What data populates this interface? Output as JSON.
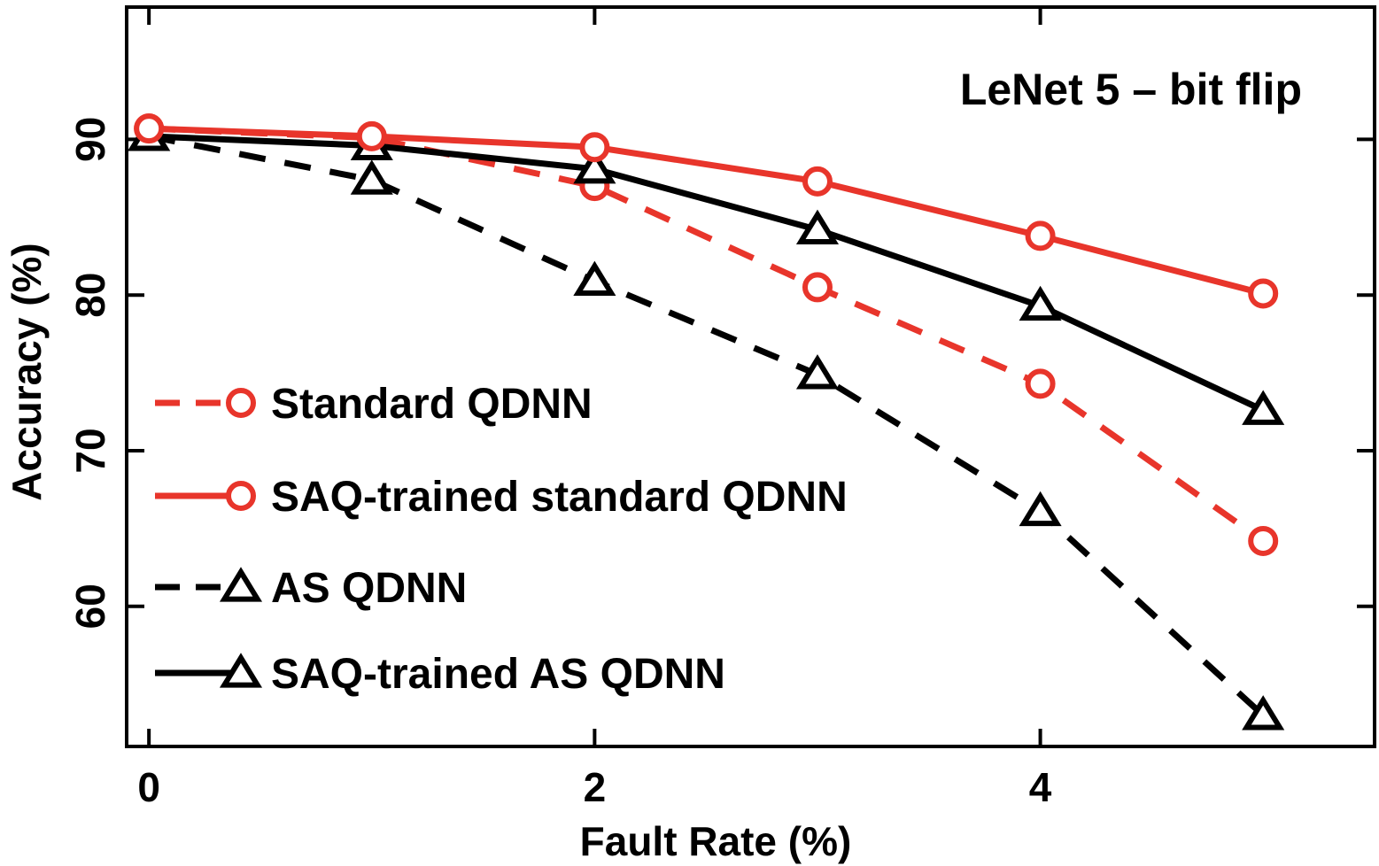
{
  "chart_data": {
    "type": "line",
    "title": "LeNet 5 – bit flip",
    "xlabel": "Fault Rate (%)",
    "ylabel": "Accuracy (%)",
    "xlim": [
      -0.1,
      5.5
    ],
    "ylim": [
      51,
      98.5
    ],
    "xticks": [
      0,
      2,
      4
    ],
    "xtick_labels": [
      "0",
      "2",
      "4"
    ],
    "yticks": [
      60,
      70,
      80,
      90
    ],
    "ytick_labels": [
      "60",
      "70",
      "80",
      "90"
    ],
    "x": [
      0,
      1,
      2,
      3,
      4,
      5
    ],
    "grid": false,
    "legend_position": "left",
    "series": [
      {
        "name": "Standard QDNN",
        "values": [
          90.7,
          90.1,
          87.0,
          80.5,
          74.3,
          64.2
        ],
        "color": "#e8352b",
        "dash": "dashed",
        "marker": "circle"
      },
      {
        "name": "SAQ-trained standard QDNN",
        "values": [
          90.7,
          90.2,
          89.5,
          87.3,
          83.8,
          80.1
        ],
        "color": "#e8352b",
        "dash": "solid",
        "marker": "circle"
      },
      {
        "name": "AS QDNN",
        "values": [
          90.2,
          87.4,
          80.9,
          74.9,
          66.1,
          53.0
        ],
        "color": "#000000",
        "dash": "dashed",
        "marker": "triangle"
      },
      {
        "name": "SAQ-trained AS QDNN",
        "values": [
          90.2,
          89.6,
          88.1,
          84.2,
          79.3,
          72.6
        ],
        "color": "#000000",
        "dash": "solid",
        "marker": "triangle"
      }
    ]
  }
}
